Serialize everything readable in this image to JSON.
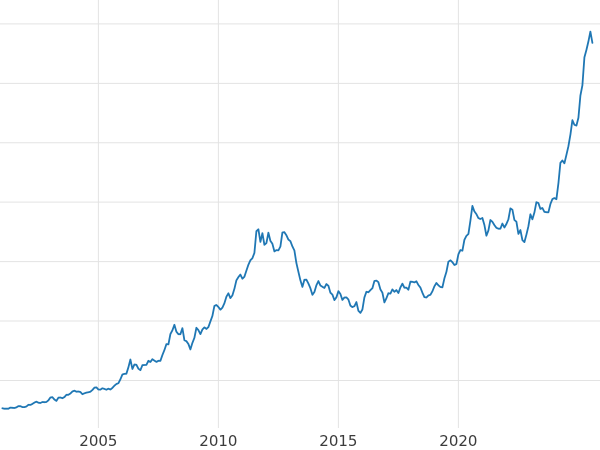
{
  "chart_data": {
    "type": "line",
    "title": "",
    "xlabel": "",
    "ylabel": "",
    "grid_on": true,
    "legend": "none",
    "line_color": "#1f77b4",
    "line_width": 1.8,
    "grid_color": "#e3e3e3",
    "tick_label_color": "#3b3b3b",
    "background_color": "#ffffff",
    "xlim": [
      2000.9,
      2025.9
    ],
    "ylim": [
      100,
      3600
    ],
    "x_ticks": [
      {
        "year": 2005,
        "label": "2005"
      },
      {
        "year": 2010,
        "label": "2010"
      },
      {
        "year": 2015,
        "label": "2015"
      },
      {
        "year": 2020,
        "label": "2020"
      }
    ],
    "y_gridlines": [
      500,
      1000,
      1500,
      2000,
      2500,
      3000,
      3500
    ],
    "x_start_year": 2001,
    "x_step_months": 1,
    "values": [
      266,
      262,
      263,
      262,
      272,
      270,
      268,
      273,
      284,
      283,
      276,
      276,
      281,
      295,
      294,
      303,
      314,
      321,
      313,
      310,
      319,
      317,
      319,
      333,
      357,
      359,
      340,
      328,
      355,
      357,
      351,
      360,
      379,
      379,
      390,
      407,
      414,
      405,
      407,
      403,
      384,
      392,
      398,
      401,
      405,
      420,
      439,
      442,
      424,
      423,
      434,
      429,
      422,
      431,
      424,
      437,
      456,
      470,
      477,
      510,
      550,
      555,
      557,
      611,
      676,
      596,
      634,
      632,
      599,
      586,
      628,
      630,
      631,
      665,
      655,
      679,
      667,
      656,
      665,
      665,
      713,
      755,
      806,
      803,
      890,
      922,
      968,
      910,
      889,
      889,
      940,
      839,
      830,
      807,
      761,
      816,
      859,
      943,
      924,
      890,
      929,
      946,
      934,
      949,
      997,
      1043,
      1127,
      1135,
      1118,
      1095,
      1113,
      1149,
      1205,
      1233,
      1193,
      1216,
      1271,
      1343,
      1370,
      1391,
      1356,
      1373,
      1424,
      1474,
      1511,
      1529,
      1573,
      1756,
      1772,
      1666,
      1739,
      1641,
      1656,
      1743,
      1674,
      1650,
      1586,
      1597,
      1594,
      1627,
      1745,
      1747,
      1722,
      1685,
      1672,
      1628,
      1593,
      1487,
      1414,
      1343,
      1287,
      1347,
      1348,
      1316,
      1276,
      1221,
      1244,
      1301,
      1336,
      1299,
      1288,
      1279,
      1311,
      1296,
      1238,
      1222,
      1176,
      1200,
      1251,
      1227,
      1178,
      1198,
      1199,
      1181,
      1130,
      1117,
      1125,
      1159,
      1086,
      1068,
      1097,
      1199,
      1246,
      1242,
      1260,
      1276,
      1337,
      1340,
      1327,
      1266,
      1238,
      1157,
      1192,
      1234,
      1231,
      1266,
      1246,
      1260,
      1236,
      1283,
      1314,
      1280,
      1281,
      1264,
      1331,
      1330,
      1325,
      1334,
      1303,
      1281,
      1238,
      1201,
      1198,
      1215,
      1221,
      1250,
      1292,
      1320,
      1301,
      1286,
      1284,
      1359,
      1413,
      1499,
      1511,
      1495,
      1471,
      1479,
      1561,
      1597,
      1592,
      1683,
      1716,
      1732,
      1843,
      1969,
      1922,
      1900,
      1866,
      1858,
      1867,
      1808,
      1718,
      1762,
      1850,
      1835,
      1807,
      1784,
      1777,
      1777,
      1820,
      1787,
      1816,
      1856,
      1948,
      1937,
      1850,
      1836,
      1733,
      1765,
      1681,
      1664,
      1726,
      1797,
      1898,
      1856,
      1913,
      2000,
      1992,
      1943,
      1951,
      1918,
      1916,
      1915,
      1984,
      2026,
      2034,
      2025,
      2158,
      2331,
      2351,
      2327,
      2398,
      2470,
      2568,
      2690,
      2651,
      2644,
      2709,
      2897,
      2983,
      3218,
      3280,
      3352,
      3435,
      3340
    ]
  }
}
